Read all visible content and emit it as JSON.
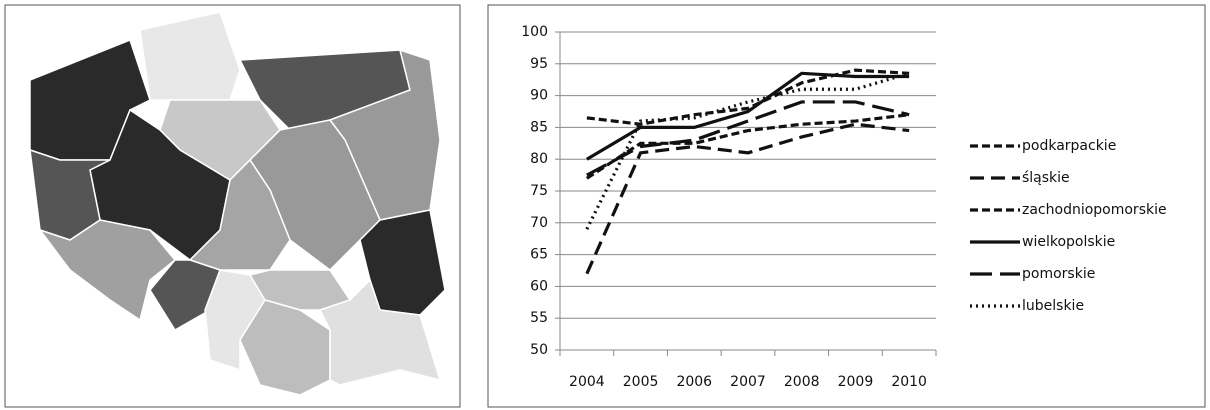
{
  "chart_data": {
    "type": "line",
    "categories": [
      "2004",
      "2005",
      "2006",
      "2007",
      "2008",
      "2009",
      "2010"
    ],
    "ylim": [
      50,
      100
    ],
    "yticks": [
      50,
      55,
      60,
      65,
      70,
      75,
      80,
      85,
      90,
      95,
      100
    ],
    "grid": true,
    "series": [
      {
        "name": "podkarpackie",
        "color": "#111111",
        "style": "short-dashed",
        "values": [
          86.5,
          85.5,
          87,
          88,
          92,
          94,
          93.5
        ]
      },
      {
        "name": "śląskie",
        "color": "#111111",
        "style": "dashed",
        "values": [
          62,
          81,
          82,
          81,
          83.5,
          85.5,
          84.5
        ]
      },
      {
        "name": "zachodniopomorskie",
        "color": "#111111",
        "style": "short-dashed",
        "values": [
          77,
          82.5,
          82.5,
          84.5,
          85.5,
          86,
          87
        ]
      },
      {
        "name": "wielkopolskie",
        "color": "#111111",
        "style": "solid",
        "values": [
          80,
          85,
          85,
          87.5,
          93.5,
          93,
          93
        ]
      },
      {
        "name": "pomorskie",
        "color": "#111111",
        "style": "long-dashed",
        "values": [
          77.5,
          82,
          83,
          86,
          89,
          89,
          87
        ]
      },
      {
        "name": "lubelskie",
        "color": "#111111",
        "style": "dotted",
        "values": [
          69,
          86,
          86.5,
          89,
          91,
          91,
          93.5
        ]
      }
    ]
  }
}
